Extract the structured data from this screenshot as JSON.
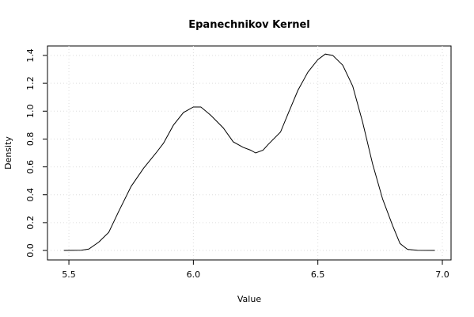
{
  "chart_data": {
    "type": "line",
    "title": "Epanechnikov Kernel",
    "x_label": "Value",
    "y_label": "Density",
    "x": [
      5.48,
      5.55,
      5.58,
      5.62,
      5.66,
      5.7,
      5.75,
      5.8,
      5.85,
      5.88,
      5.92,
      5.96,
      6.0,
      6.03,
      6.07,
      6.12,
      6.16,
      6.2,
      6.23,
      6.25,
      6.28,
      6.3,
      6.35,
      6.38,
      6.42,
      6.46,
      6.5,
      6.53,
      6.56,
      6.6,
      6.64,
      6.68,
      6.72,
      6.76,
      6.8,
      6.83,
      6.86,
      6.9,
      6.97
    ],
    "values": [
      0,
      0.002,
      0.01,
      0.06,
      0.13,
      0.28,
      0.46,
      0.59,
      0.7,
      0.77,
      0.9,
      0.99,
      1.03,
      1.03,
      0.97,
      0.88,
      0.78,
      0.74,
      0.72,
      0.7,
      0.72,
      0.76,
      0.85,
      0.98,
      1.15,
      1.28,
      1.37,
      1.41,
      1.4,
      1.33,
      1.18,
      0.92,
      0.62,
      0.37,
      0.18,
      0.05,
      0.008,
      0.001,
      0
    ],
    "color": "#000000",
    "xlim": [
      5.414,
      7.035
    ],
    "xticks": [
      5.5,
      {
        "value": 6,
        "label": "6.0"
      },
      6.5,
      {
        "value": 7,
        "label": "7.0"
      }
    ],
    "ylim": [
      -0.068,
      1.468
    ],
    "yticks": [
      {
        "value": 0,
        "label": "0.0"
      },
      0.2,
      0.4,
      0.6,
      0.8,
      {
        "value": 1,
        "label": "1.0"
      },
      1.2,
      1.4
    ],
    "grid": true
  }
}
